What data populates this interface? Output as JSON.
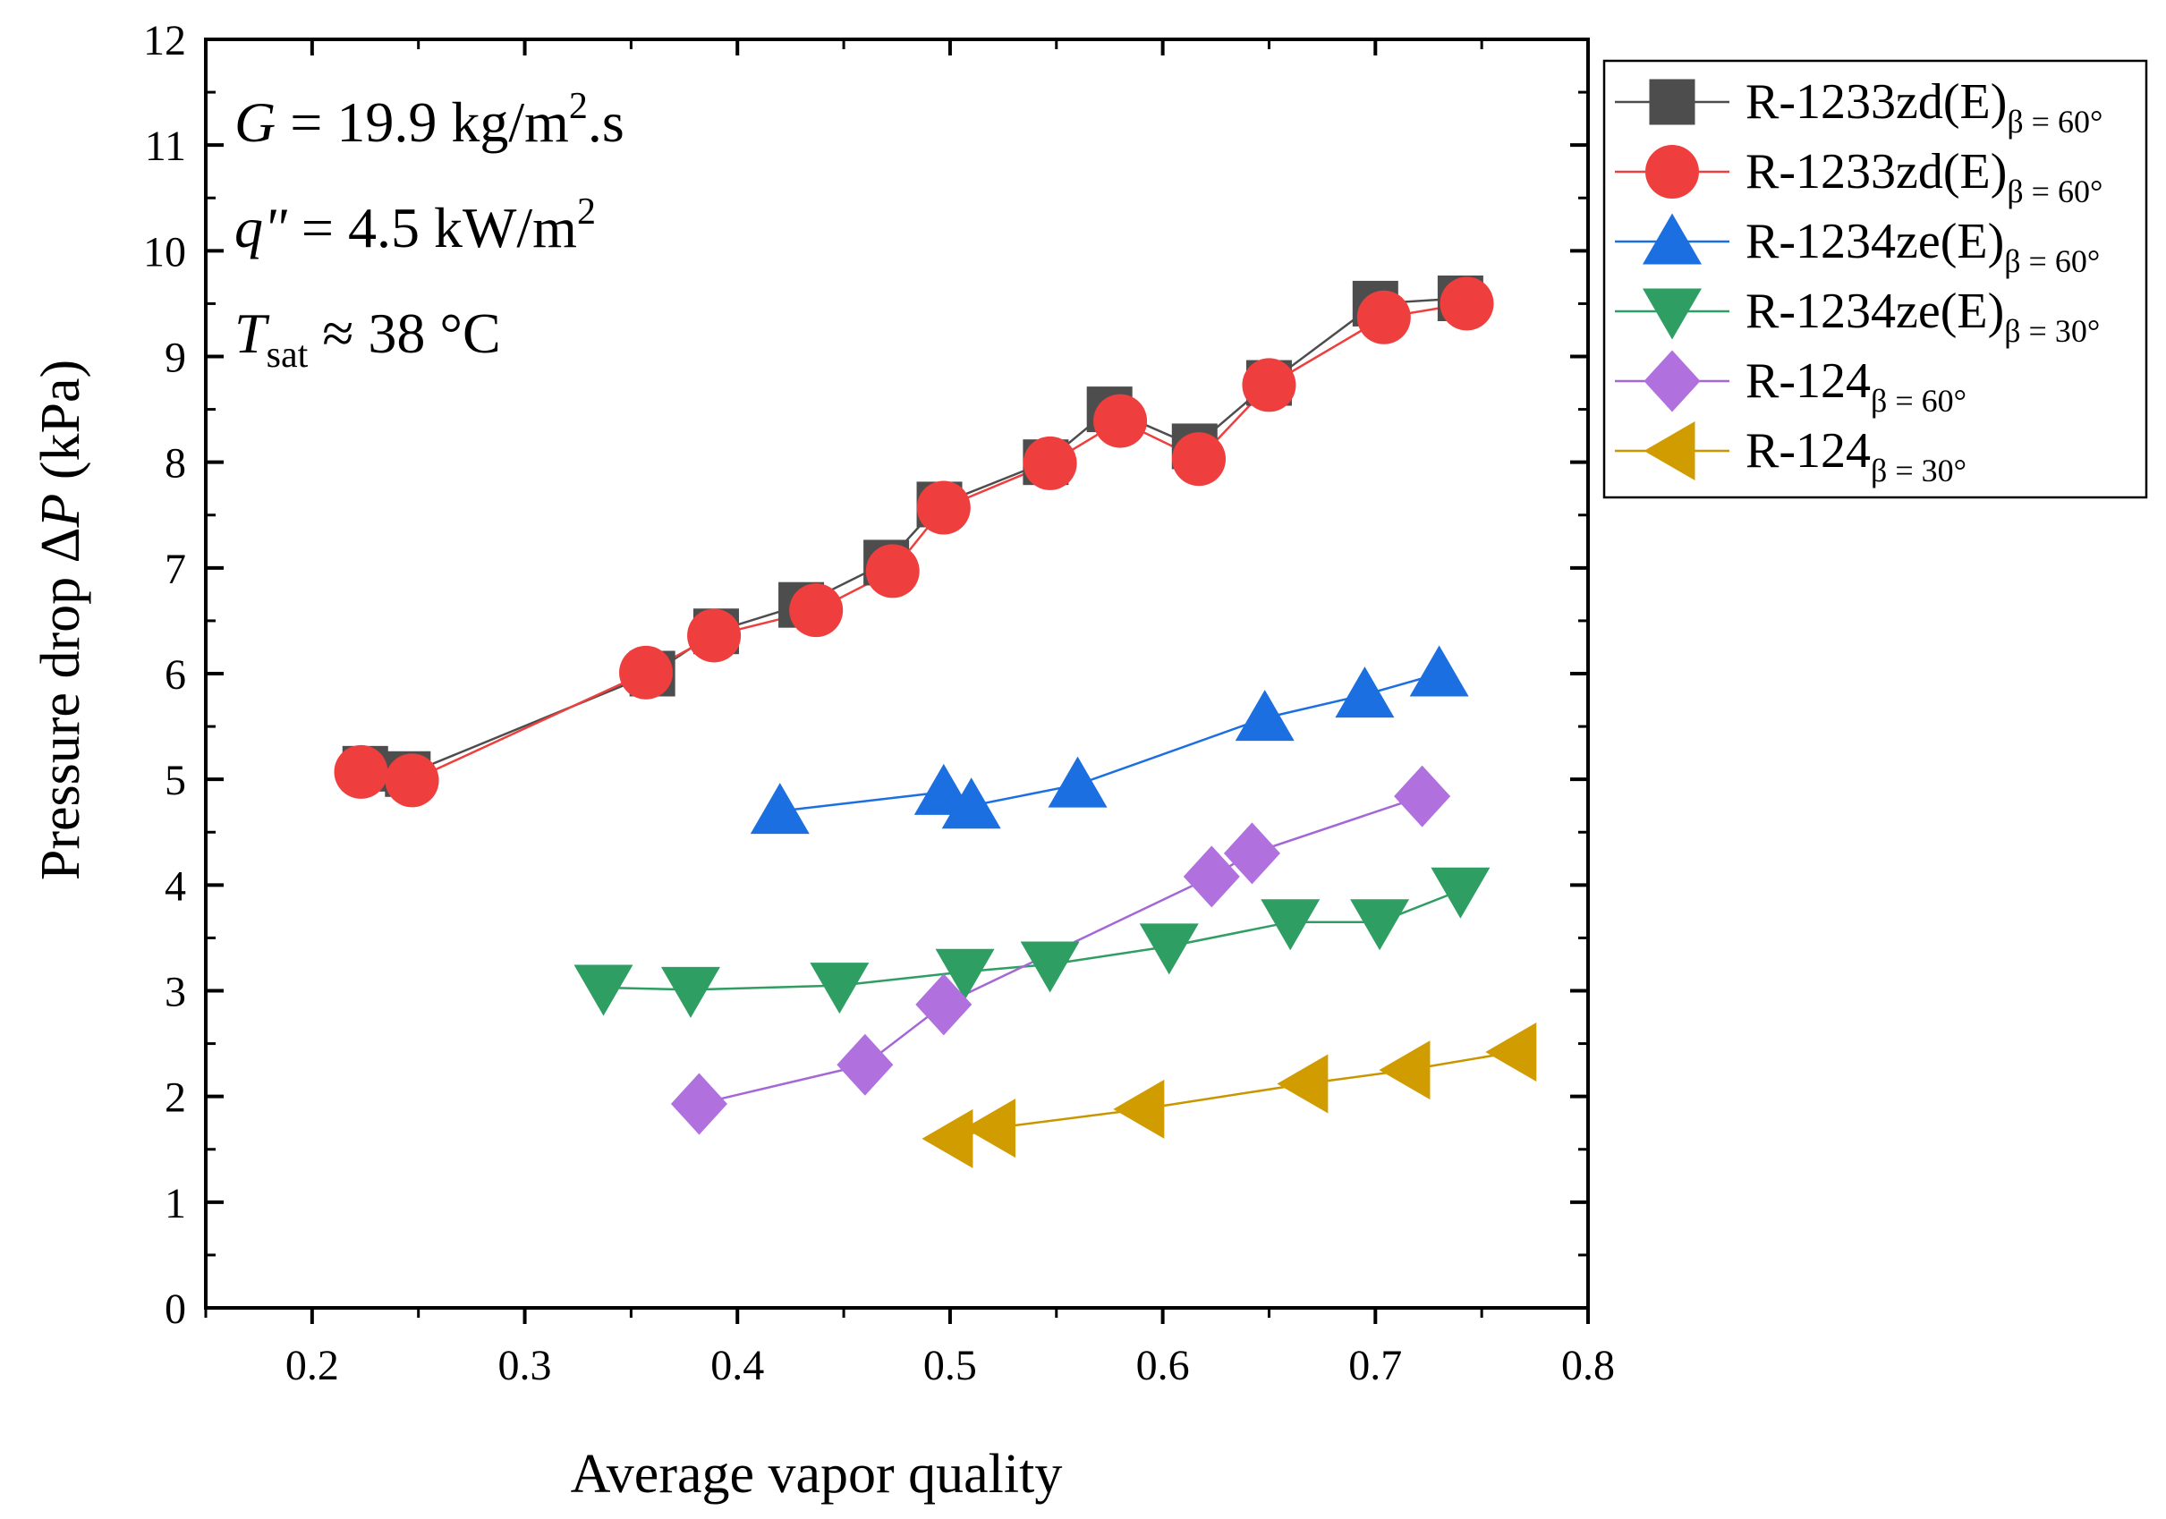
{
  "chart_data": {
    "type": "line",
    "xlabel": "Average vapor quality",
    "ylabel": {
      "prefix": "Pressure drop Δ",
      "var": "P",
      "suffix": " (kPa)"
    },
    "xlim": [
      0.15,
      0.8
    ],
    "ylim": [
      0,
      12
    ],
    "xticks": [
      "0.2",
      "0.3",
      "0.4",
      "0.5",
      "0.6",
      "0.7",
      "0.8"
    ],
    "yticks": [
      "0",
      "1",
      "2",
      "3",
      "4",
      "5",
      "6",
      "7",
      "8",
      "9",
      "10",
      "11",
      "12"
    ],
    "grid": false,
    "legend_position": "outside-top-right",
    "annotations": [
      {
        "var": "G",
        "text": " = 19.9 kg/m",
        "sup": "2",
        "after": ".s"
      },
      {
        "var": "q\"",
        "text": " = 4.5 kW/m",
        "sup": "2",
        "after": ""
      },
      {
        "var": "T",
        "sub": "sat",
        "text": " ≈ 38  °C",
        "sup": "",
        "after": ""
      }
    ],
    "series": [
      {
        "name": "R-1233zd(E)",
        "subscript": "β = 60°",
        "marker": "square",
        "color": "#4d4d4d",
        "line_color": "#4d4d4d",
        "x": [
          0.225,
          0.245,
          0.36,
          0.39,
          0.43,
          0.47,
          0.495,
          0.545,
          0.575,
          0.615,
          0.65,
          0.7,
          0.74
        ],
        "y": [
          5.1,
          5.05,
          6.0,
          6.4,
          6.65,
          7.05,
          7.6,
          8.0,
          8.5,
          8.15,
          8.75,
          9.5,
          9.55
        ]
      },
      {
        "name": "R-1233zd(E)",
        "subscript": "β = 60°",
        "marker": "circle",
        "color": "#ee3e3e",
        "line_color": "#ee3e3e",
        "x": [
          0.223,
          0.247,
          0.357,
          0.389,
          0.437,
          0.473,
          0.497,
          0.547,
          0.58,
          0.617,
          0.65,
          0.704,
          0.743
        ],
        "y": [
          5.07,
          4.99,
          6.01,
          6.36,
          6.6,
          6.97,
          7.57,
          7.99,
          8.39,
          8.03,
          8.73,
          9.37,
          9.5
        ]
      },
      {
        "name": "R-1234ze(E)",
        "subscript": "β = 60°",
        "marker": "triangle-up",
        "color": "#1c6fe0",
        "line_color": "#1c6fe0",
        "x": [
          0.42,
          0.497,
          0.51,
          0.56,
          0.648,
          0.695,
          0.73
        ],
        "y": [
          4.7,
          4.88,
          4.75,
          4.95,
          5.58,
          5.8,
          6.0
        ]
      },
      {
        "name": "R-1234ze(E)",
        "subscript": "β = 30°",
        "marker": "triangle-down",
        "color": "#2e9e62",
        "line_color": "#2e9e62",
        "x": [
          0.337,
          0.378,
          0.448,
          0.507,
          0.547,
          0.603,
          0.66,
          0.702,
          0.74
        ],
        "y": [
          3.03,
          3.01,
          3.05,
          3.18,
          3.25,
          3.42,
          3.65,
          3.65,
          3.95
        ]
      },
      {
        "name": "R-124",
        "subscript": "β = 60°",
        "marker": "diamond",
        "color": "#b070de",
        "line_color": "#a467d6",
        "x": [
          0.382,
          0.46,
          0.497,
          0.623,
          0.642,
          0.722
        ],
        "y": [
          1.93,
          2.3,
          2.87,
          4.08,
          4.3,
          4.84
        ]
      },
      {
        "name": "R-124",
        "subscript": "β = 30°",
        "marker": "triangle-left",
        "color": "#d19c00",
        "line_color": "#c99600",
        "x": [
          0.5,
          0.52,
          0.59,
          0.667,
          0.715,
          0.765
        ],
        "y": [
          1.6,
          1.7,
          1.88,
          2.12,
          2.25,
          2.42
        ]
      }
    ]
  }
}
